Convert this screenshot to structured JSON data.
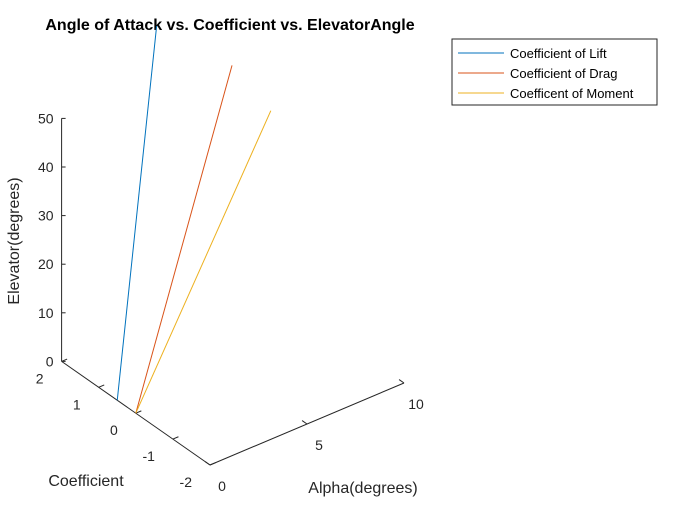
{
  "chart_data": {
    "type": "line",
    "title": "Angle of Attack vs. Coefficient vs. ElevatorAngle",
    "xlabel": "Alpha(degrees)",
    "ylabel": "Coefficient",
    "zlabel": "Elevator(degrees)",
    "x_ticks": [
      0,
      5,
      10
    ],
    "y_ticks": [
      -2,
      -1,
      0,
      1,
      2
    ],
    "z_ticks": [
      0,
      10,
      20,
      30,
      40,
      50
    ],
    "xlim": [
      0,
      10
    ],
    "ylim": [
      -2,
      2
    ],
    "zlim": [
      0,
      50
    ],
    "grid": false,
    "legend_position": "top-right",
    "series": [
      {
        "name": "Coefficient of Lift",
        "color": "#0072BD",
        "start": [
          0,
          0.5,
          0
        ],
        "end": [
          2.03,
          0.5,
          73.6
        ]
      },
      {
        "name": "Coefficient of Drag",
        "color": "#D95319",
        "start": [
          0,
          0.0,
          0
        ],
        "end": [
          4.96,
          0.0,
          63.2
        ]
      },
      {
        "name": "Coefficent of Moment",
        "color": "#EDB120",
        "start": [
          0,
          0.0,
          0
        ],
        "end": [
          6.96,
          0.0,
          50.5
        ]
      }
    ]
  }
}
